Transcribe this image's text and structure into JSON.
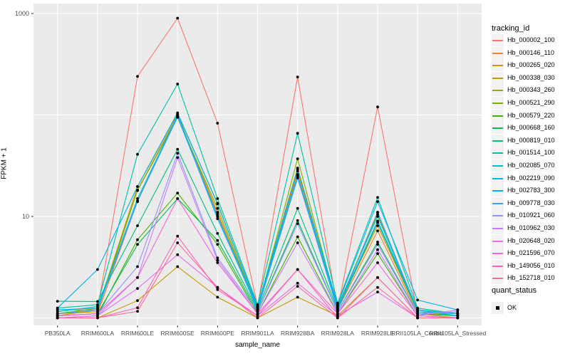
{
  "chart_data": {
    "type": "line",
    "title": "",
    "xlabel": "sample_name",
    "ylabel": "FPKM + 1",
    "y_scale": "log10",
    "ylim": [
      0.9,
      1250
    ],
    "grid": true,
    "y_gridline_values": [
      1,
      10,
      100,
      1000
    ],
    "y_tick_labels": [
      {
        "label": "1000",
        "value": 1000
      },
      {
        "label": "10",
        "value": 10
      }
    ],
    "legend_position": "right",
    "legend_title": "tracking_id",
    "point_color": "#000000",
    "panel_bg": "#EBEBEB",
    "grid_color": "#FFFFFF",
    "tick_label_color": "#4D4D4D",
    "categories": [
      "PB350LA",
      "RRIM600LA",
      "RRIM600LE",
      "RRIM600SE",
      "RRIM600PE",
      "RRIM901LA",
      "RRIM928BA",
      "RRIM928LA",
      "RRIM928LE",
      "RRII105LA_Control",
      "RRII105LA_Stressed"
    ],
    "series": [
      {
        "name": "Hb_000002_100",
        "color": "#F8766D",
        "values": [
          1.2,
          1.2,
          240,
          900,
          83,
          1.3,
          237,
          1.2,
          120,
          1.1,
          1.05
        ]
      },
      {
        "name": "Hb_000146_110",
        "color": "#EA8331",
        "values": [
          1.05,
          1.1,
          14.2,
          100,
          10.5,
          1.2,
          28,
          1.2,
          7.2,
          1.1,
          1.0
        ]
      },
      {
        "name": "Hb_000265_020",
        "color": "#D89000",
        "values": [
          1.1,
          1.15,
          18.2,
          98,
          11,
          1.25,
          26,
          1.25,
          8.1,
          1.15,
          1.05
        ]
      },
      {
        "name": "Hb_000338_030",
        "color": "#C09B00",
        "values": [
          1.0,
          1.0,
          1.48,
          3.2,
          1.6,
          1.0,
          1.6,
          1.05,
          2.5,
          1.0,
          1.0
        ]
      },
      {
        "name": "Hb_000343_260",
        "color": "#A3A500",
        "values": [
          1.05,
          1.2,
          19.7,
          102,
          13.5,
          1.3,
          30,
          1.3,
          10.5,
          1.2,
          1.1
        ]
      },
      {
        "name": "Hb_000521_290",
        "color": "#7CAE00",
        "values": [
          1.1,
          1.25,
          18.0,
          95,
          12,
          1.25,
          37,
          1.25,
          11,
          1.15,
          1.05
        ]
      },
      {
        "name": "Hb_000579_220",
        "color": "#39B600",
        "values": [
          1.0,
          1.05,
          5.9,
          17,
          5.3,
          1.1,
          6.3,
          1.1,
          4.3,
          1.05,
          1.0
        ]
      },
      {
        "name": "Hb_000668_160",
        "color": "#00BB4E",
        "values": [
          1.05,
          1.1,
          5.3,
          15,
          5.8,
          1.15,
          9.1,
          1.15,
          5.6,
          1.1,
          1.05
        ]
      },
      {
        "name": "Hb_000819_010",
        "color": "#00BF7D",
        "values": [
          1.46,
          1.45,
          8.1,
          46,
          6.8,
          1.2,
          12,
          1.2,
          8.7,
          1.15,
          1.1
        ]
      },
      {
        "name": "Hb_001514_100",
        "color": "#00C1A3",
        "values": [
          1.25,
          1.35,
          41,
          202,
          15,
          1.35,
          66,
          1.4,
          15.4,
          1.25,
          1.1
        ]
      },
      {
        "name": "Hb_002085_070",
        "color": "#00BFC4",
        "values": [
          1.15,
          1.3,
          14.0,
          100,
          10,
          1.3,
          25,
          1.3,
          10,
          1.2,
          1.1
        ]
      },
      {
        "name": "Hb_002219_090",
        "color": "#00BAE0",
        "values": [
          1.2,
          1.25,
          15.0,
          98,
          9.5,
          1.25,
          24,
          1.25,
          9.0,
          1.2,
          1.05
        ]
      },
      {
        "name": "Hb_002783_300",
        "color": "#00B0F6",
        "values": [
          1.25,
          3.0,
          19.7,
          105,
          13.3,
          1.3,
          29,
          1.35,
          14,
          1.5,
          1.2
        ]
      },
      {
        "name": "Hb_009778_030",
        "color": "#35A2FF",
        "values": [
          1.1,
          1.2,
          14.2,
          95,
          10,
          1.2,
          24,
          1.2,
          11,
          1.15,
          1.1
        ]
      },
      {
        "name": "Hb_010921_060",
        "color": "#9590FF",
        "values": [
          1.05,
          1.1,
          3.2,
          42,
          3.9,
          1.15,
          8.5,
          1.15,
          5.3,
          1.1,
          1.15
        ]
      },
      {
        "name": "Hb_010962_030",
        "color": "#C77CFF",
        "values": [
          1.0,
          1.05,
          2.5,
          38,
          3.7,
          1.1,
          5.5,
          1.1,
          4.7,
          1.05,
          1.2
        ]
      },
      {
        "name": "Hb_020648_020",
        "color": "#E76BF3",
        "values": [
          1.0,
          1.05,
          1.95,
          4.2,
          2.0,
          1.05,
          2.2,
          1.05,
          1.8,
          1.0,
          1.0
        ]
      },
      {
        "name": "Hb_021596_070",
        "color": "#FA62DB",
        "values": [
          1.05,
          1.1,
          2.5,
          15,
          3.5,
          1.1,
          3.0,
          1.1,
          3.5,
          1.05,
          1.0
        ]
      },
      {
        "name": "Hb_149056_010",
        "color": "#FF62BC",
        "values": [
          1.0,
          1.0,
          1.26,
          6.4,
          1.9,
          1.05,
          3.0,
          1.0,
          2.5,
          1.0,
          1.0
        ]
      },
      {
        "name": "Hb_152718_010",
        "color": "#FF6A98",
        "values": [
          1.0,
          1.0,
          1.16,
          5.5,
          2.0,
          1.0,
          2.05,
          1.0,
          2.0,
          1.0,
          1.0
        ]
      }
    ],
    "legend2_title": "quant_status",
    "legend2_items": [
      {
        "label": "OK"
      }
    ]
  }
}
